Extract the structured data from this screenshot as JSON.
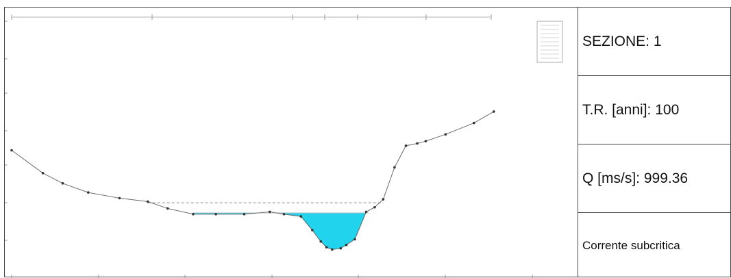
{
  "info": {
    "section": "SEZIONE: 1",
    "return_period": "T.R. [anni]: 100",
    "discharge": "Q [ms/s]: 999.36",
    "regime": "Corrente subcritica"
  },
  "colors": {
    "terrain": "#6b6b6b",
    "water": "#22d3ee",
    "water_edge": "#0a9bb5",
    "energy_line": "#888888",
    "frame": "#444444"
  },
  "chart_data": {
    "type": "area",
    "x_range": [
      0,
      100
    ],
    "y_range": [
      0,
      100
    ],
    "grid": false,
    "legend": "top-right",
    "terrain": {
      "x": [
        0,
        5.5,
        9,
        13.5,
        19,
        24,
        27.5,
        32,
        36,
        41,
        45.5,
        48,
        51,
        53,
        54.5,
        55.5,
        56.5,
        58,
        59,
        60.5,
        62.5,
        64,
        65.5,
        67.5,
        69.5,
        71.5,
        73,
        76.5,
        81.5,
        85
      ],
      "y": [
        50,
        40,
        35.5,
        31.5,
        29,
        27.5,
        24.5,
        22,
        22,
        22,
        23,
        22,
        21,
        15,
        10,
        7.5,
        6.5,
        7,
        8.5,
        11,
        23,
        25,
        28.5,
        42.5,
        52,
        53,
        54,
        57,
        62,
        67
      ]
    },
    "water_surface": {
      "y": 22.5,
      "x_range": [
        32,
        63
      ]
    },
    "energy_line": {
      "y": 27,
      "x_range": [
        24,
        65.5
      ]
    }
  }
}
